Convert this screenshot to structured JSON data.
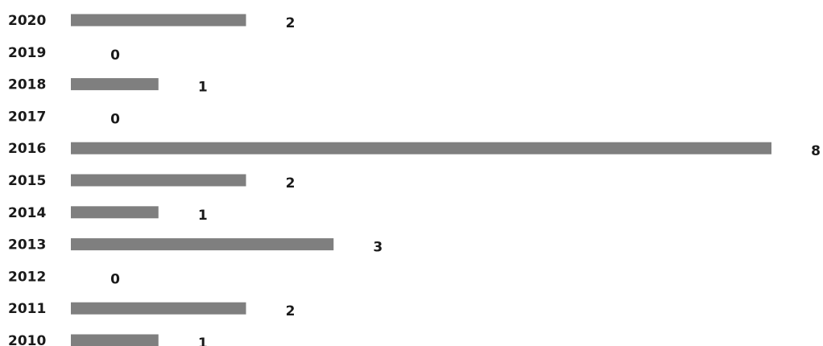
{
  "chart_data": {
    "type": "bar",
    "orientation": "horizontal",
    "categories": [
      "2020",
      "2019",
      "2018",
      "2017",
      "2016",
      "2015",
      "2014",
      "2013",
      "2012",
      "2011",
      "2010"
    ],
    "values": [
      2,
      0,
      1,
      0,
      8,
      2,
      1,
      3,
      0,
      2,
      1
    ],
    "title": "",
    "xlabel": "",
    "ylabel": "",
    "xlim": [
      0,
      8
    ],
    "grid": false,
    "legend": "none",
    "bar_color": "#7f7f7f",
    "text_color": "#1a1a1a"
  }
}
